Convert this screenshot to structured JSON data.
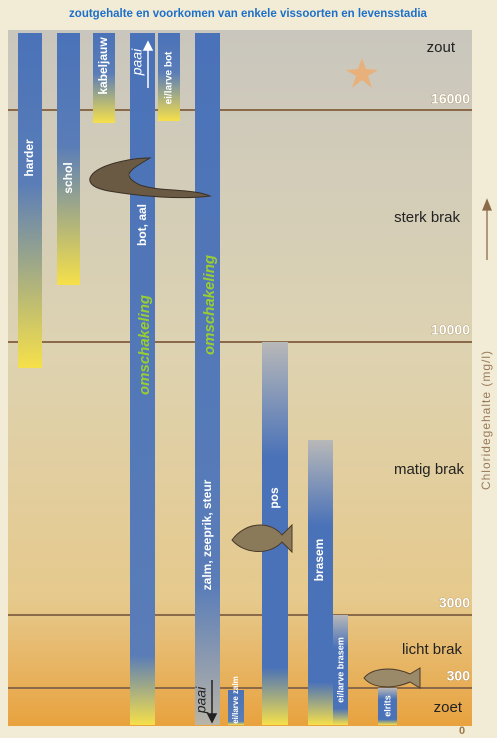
{
  "header": {
    "title": "zoutgehalte en voorkomen van enkele vissoorten en levensstadia"
  },
  "zones": [
    "zout",
    "sterk brak",
    "matig brak",
    "licht brak",
    "zoet"
  ],
  "axis": {
    "label": "Chloridegehalte (mg/l)",
    "ticks": [
      "16000",
      "10000",
      "3000",
      "300",
      "0"
    ]
  },
  "species": [
    "harder",
    "schol",
    "kabeljauw",
    "bot, aal",
    "ei/larve bot",
    "zalm, zeeprik, steur",
    "ei/larve zalm",
    "pos",
    "brasem",
    "ei/larve brasem",
    "elrits"
  ],
  "annotations": {
    "switch": "omschakeling",
    "spawn": "paai"
  }
}
